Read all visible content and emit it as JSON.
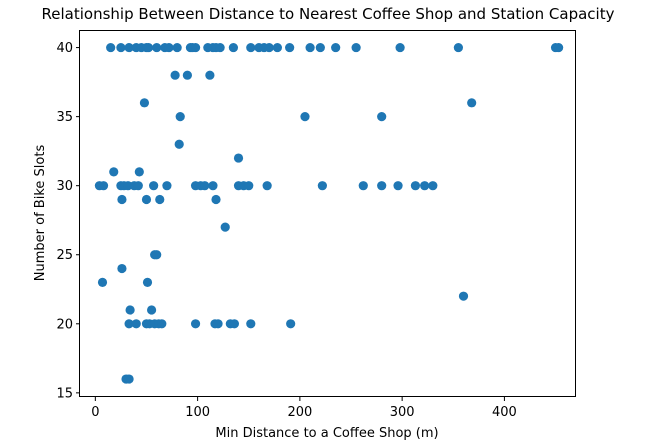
{
  "chart_data": {
    "type": "scatter",
    "title": "Relationship Between Distance to Nearest Coffee Shop and Station Capacity",
    "xlabel": "Min Distance to a Coffee Shop (m)",
    "ylabel": "Number of Bike Slots",
    "xlim": [
      -15,
      470
    ],
    "ylim": [
      14.7,
      41.2
    ],
    "xticks": [
      0,
      100,
      200,
      300,
      400
    ],
    "yticks": [
      15,
      20,
      25,
      30,
      35,
      40
    ],
    "grid": false,
    "marker_color": "#1f77b4",
    "series": [
      {
        "points": [
          [
            15,
            40
          ],
          [
            25,
            40
          ],
          [
            33,
            40
          ],
          [
            40,
            40
          ],
          [
            45,
            40
          ],
          [
            50,
            40
          ],
          [
            52,
            40
          ],
          [
            60,
            40
          ],
          [
            68,
            40
          ],
          [
            72,
            40
          ],
          [
            80,
            40
          ],
          [
            93,
            40
          ],
          [
            95,
            40
          ],
          [
            98,
            40
          ],
          [
            110,
            40
          ],
          [
            115,
            40
          ],
          [
            118,
            40
          ],
          [
            122,
            40
          ],
          [
            135,
            40
          ],
          [
            152,
            40
          ],
          [
            160,
            40
          ],
          [
            165,
            40
          ],
          [
            170,
            40
          ],
          [
            178,
            40
          ],
          [
            190,
            40
          ],
          [
            210,
            40
          ],
          [
            220,
            40
          ],
          [
            235,
            40
          ],
          [
            255,
            40
          ],
          [
            298,
            40
          ],
          [
            355,
            40
          ],
          [
            450,
            40
          ],
          [
            453,
            40
          ],
          [
            78,
            38
          ],
          [
            90,
            38
          ],
          [
            112,
            38
          ],
          [
            48,
            36
          ],
          [
            368,
            36
          ],
          [
            83,
            35
          ],
          [
            205,
            35
          ],
          [
            280,
            35
          ],
          [
            82,
            33
          ],
          [
            140,
            32
          ],
          [
            18,
            31
          ],
          [
            43,
            31
          ],
          [
            4,
            30
          ],
          [
            8,
            30
          ],
          [
            25,
            30
          ],
          [
            28,
            30
          ],
          [
            32,
            30
          ],
          [
            38,
            30
          ],
          [
            42,
            30
          ],
          [
            57,
            30
          ],
          [
            70,
            30
          ],
          [
            98,
            30
          ],
          [
            103,
            30
          ],
          [
            107,
            30
          ],
          [
            115,
            30
          ],
          [
            140,
            30
          ],
          [
            145,
            30
          ],
          [
            150,
            30
          ],
          [
            168,
            30
          ],
          [
            222,
            30
          ],
          [
            262,
            30
          ],
          [
            280,
            30
          ],
          [
            296,
            30
          ],
          [
            313,
            30
          ],
          [
            322,
            30
          ],
          [
            330,
            30
          ],
          [
            26,
            29
          ],
          [
            50,
            29
          ],
          [
            63,
            29
          ],
          [
            118,
            29
          ],
          [
            127,
            27
          ],
          [
            58,
            25
          ],
          [
            60,
            25
          ],
          [
            26,
            24
          ],
          [
            7,
            23
          ],
          [
            51,
            23
          ],
          [
            360,
            22
          ],
          [
            34,
            21
          ],
          [
            55,
            21
          ],
          [
            33,
            20
          ],
          [
            40,
            20
          ],
          [
            50,
            20
          ],
          [
            53,
            20
          ],
          [
            58,
            20
          ],
          [
            62,
            20
          ],
          [
            65,
            20
          ],
          [
            98,
            20
          ],
          [
            117,
            20
          ],
          [
            120,
            20
          ],
          [
            132,
            20
          ],
          [
            136,
            20
          ],
          [
            152,
            20
          ],
          [
            191,
            20
          ],
          [
            30,
            16
          ],
          [
            33,
            16
          ]
        ]
      }
    ]
  }
}
